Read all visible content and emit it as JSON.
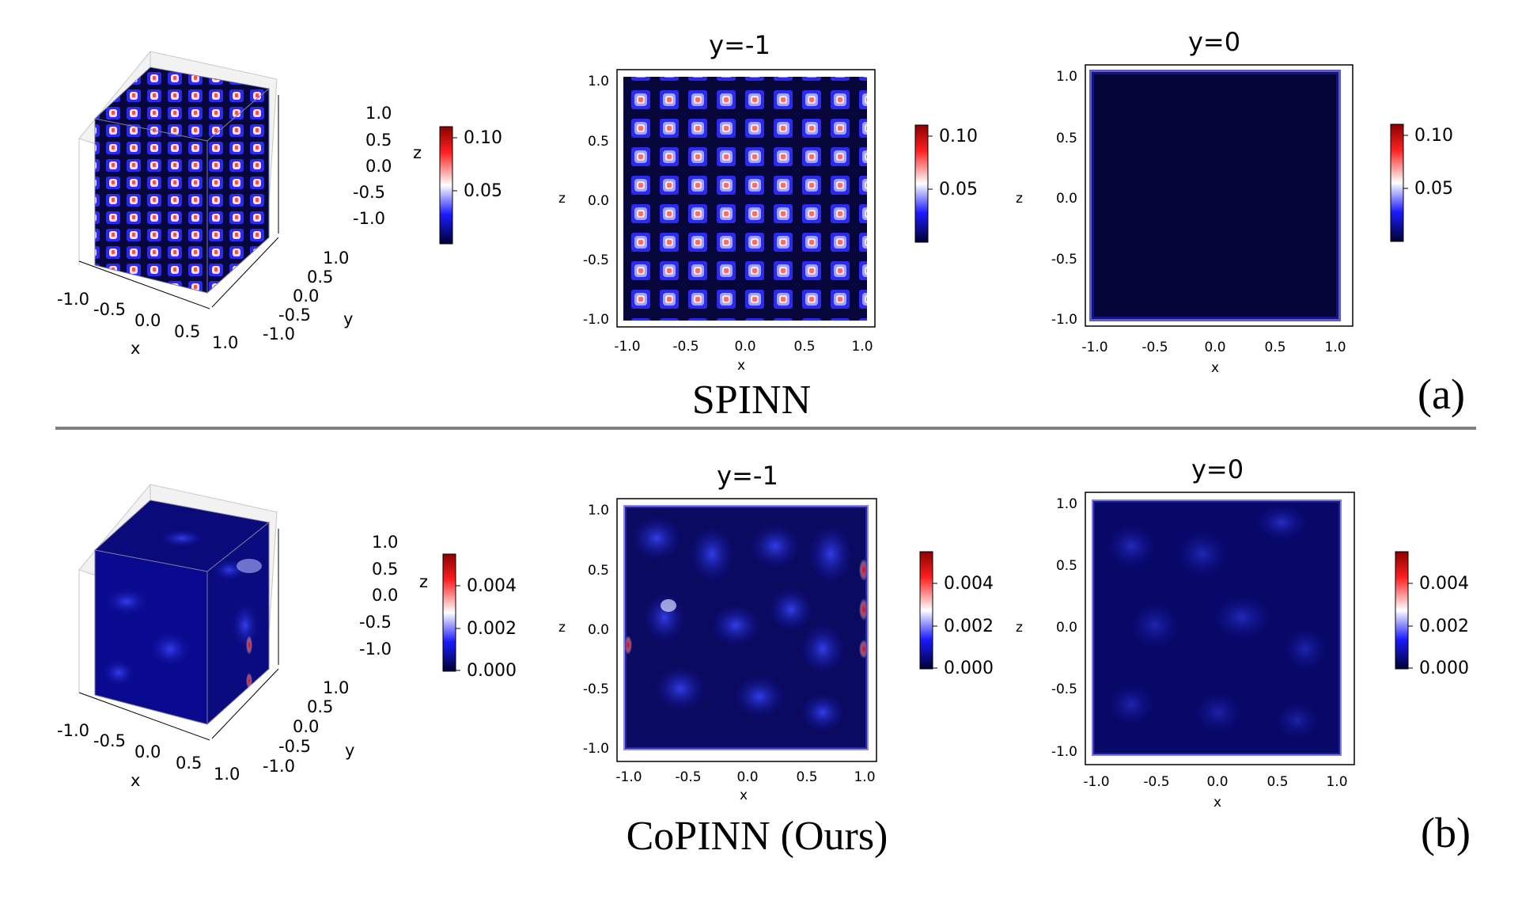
{
  "rows": [
    {
      "method_label": "SPINN",
      "panel_tag": "(a)",
      "colorbar_ticks": [
        "0.10",
        "0.05"
      ],
      "pattern": "grid",
      "slices": [
        {
          "title": "y=-1"
        },
        {
          "title": "y=0"
        }
      ]
    },
    {
      "method_label": "CoPINN (Ours)",
      "panel_tag": "(b)",
      "colorbar_ticks": [
        "0.004",
        "0.002",
        "0.000"
      ],
      "pattern": "smooth",
      "slices": [
        {
          "title": "y=-1"
        },
        {
          "title": "y=0"
        }
      ]
    }
  ],
  "cube_axes": {
    "x_label": "x",
    "y_label": "y",
    "z_label": "z",
    "x_ticks": [
      "-1.0",
      "-0.5",
      "0.0",
      "0.5",
      "1.0"
    ],
    "y_ticks": [
      "1.0",
      "0.5",
      "0.0",
      "-0.5",
      "-1.0"
    ],
    "z_ticks": [
      "1.0",
      "0.5",
      "0.0",
      "-0.5",
      "-1.0"
    ]
  },
  "slice_axes": {
    "x_label": "x",
    "y_label": "z",
    "x_ticks": [
      "-1.0",
      "-0.5",
      "0.0",
      "0.5",
      "1.0"
    ],
    "y_ticks": [
      "1.0",
      "0.5",
      "0.0",
      "-0.5",
      "-1.0"
    ]
  },
  "colors": {
    "low": "#000033",
    "mid_low": "#1a1aff",
    "mid": "#ffffff",
    "high": "#8b0000",
    "separator": "#808080"
  },
  "chart_data": [
    {
      "type": "heatmap",
      "panel": "(a)",
      "view": "3d-cube",
      "xlim": [
        -1,
        1
      ],
      "ylim": [
        -1,
        1
      ],
      "zlim": [
        -1,
        1
      ],
      "colorbar_ticks": [
        0.1,
        0.05
      ]
    },
    {
      "type": "heatmap",
      "panel": "(a)",
      "view": "slice",
      "title": "y=-1",
      "xlim": [
        -1,
        1
      ],
      "ylim": [
        -1,
        1
      ],
      "colorbar_ticks": [
        0.1,
        0.05
      ]
    },
    {
      "type": "heatmap",
      "panel": "(a)",
      "view": "slice",
      "title": "y=0",
      "xlim": [
        -1,
        1
      ],
      "ylim": [
        -1,
        1
      ],
      "colorbar_ticks": [
        0.1,
        0.05
      ]
    },
    {
      "type": "heatmap",
      "panel": "(b)",
      "view": "3d-cube",
      "xlim": [
        -1,
        1
      ],
      "ylim": [
        -1,
        1
      ],
      "zlim": [
        -1,
        1
      ],
      "colorbar_ticks": [
        0.004,
        0.002,
        0.0
      ]
    },
    {
      "type": "heatmap",
      "panel": "(b)",
      "view": "slice",
      "title": "y=-1",
      "xlim": [
        -1,
        1
      ],
      "ylim": [
        -1,
        1
      ],
      "colorbar_ticks": [
        0.004,
        0.002,
        0.0
      ]
    },
    {
      "type": "heatmap",
      "panel": "(b)",
      "view": "slice",
      "title": "y=0",
      "xlim": [
        -1,
        1
      ],
      "ylim": [
        -1,
        1
      ],
      "colorbar_ticks": [
        0.004,
        0.002,
        0.0
      ]
    }
  ]
}
